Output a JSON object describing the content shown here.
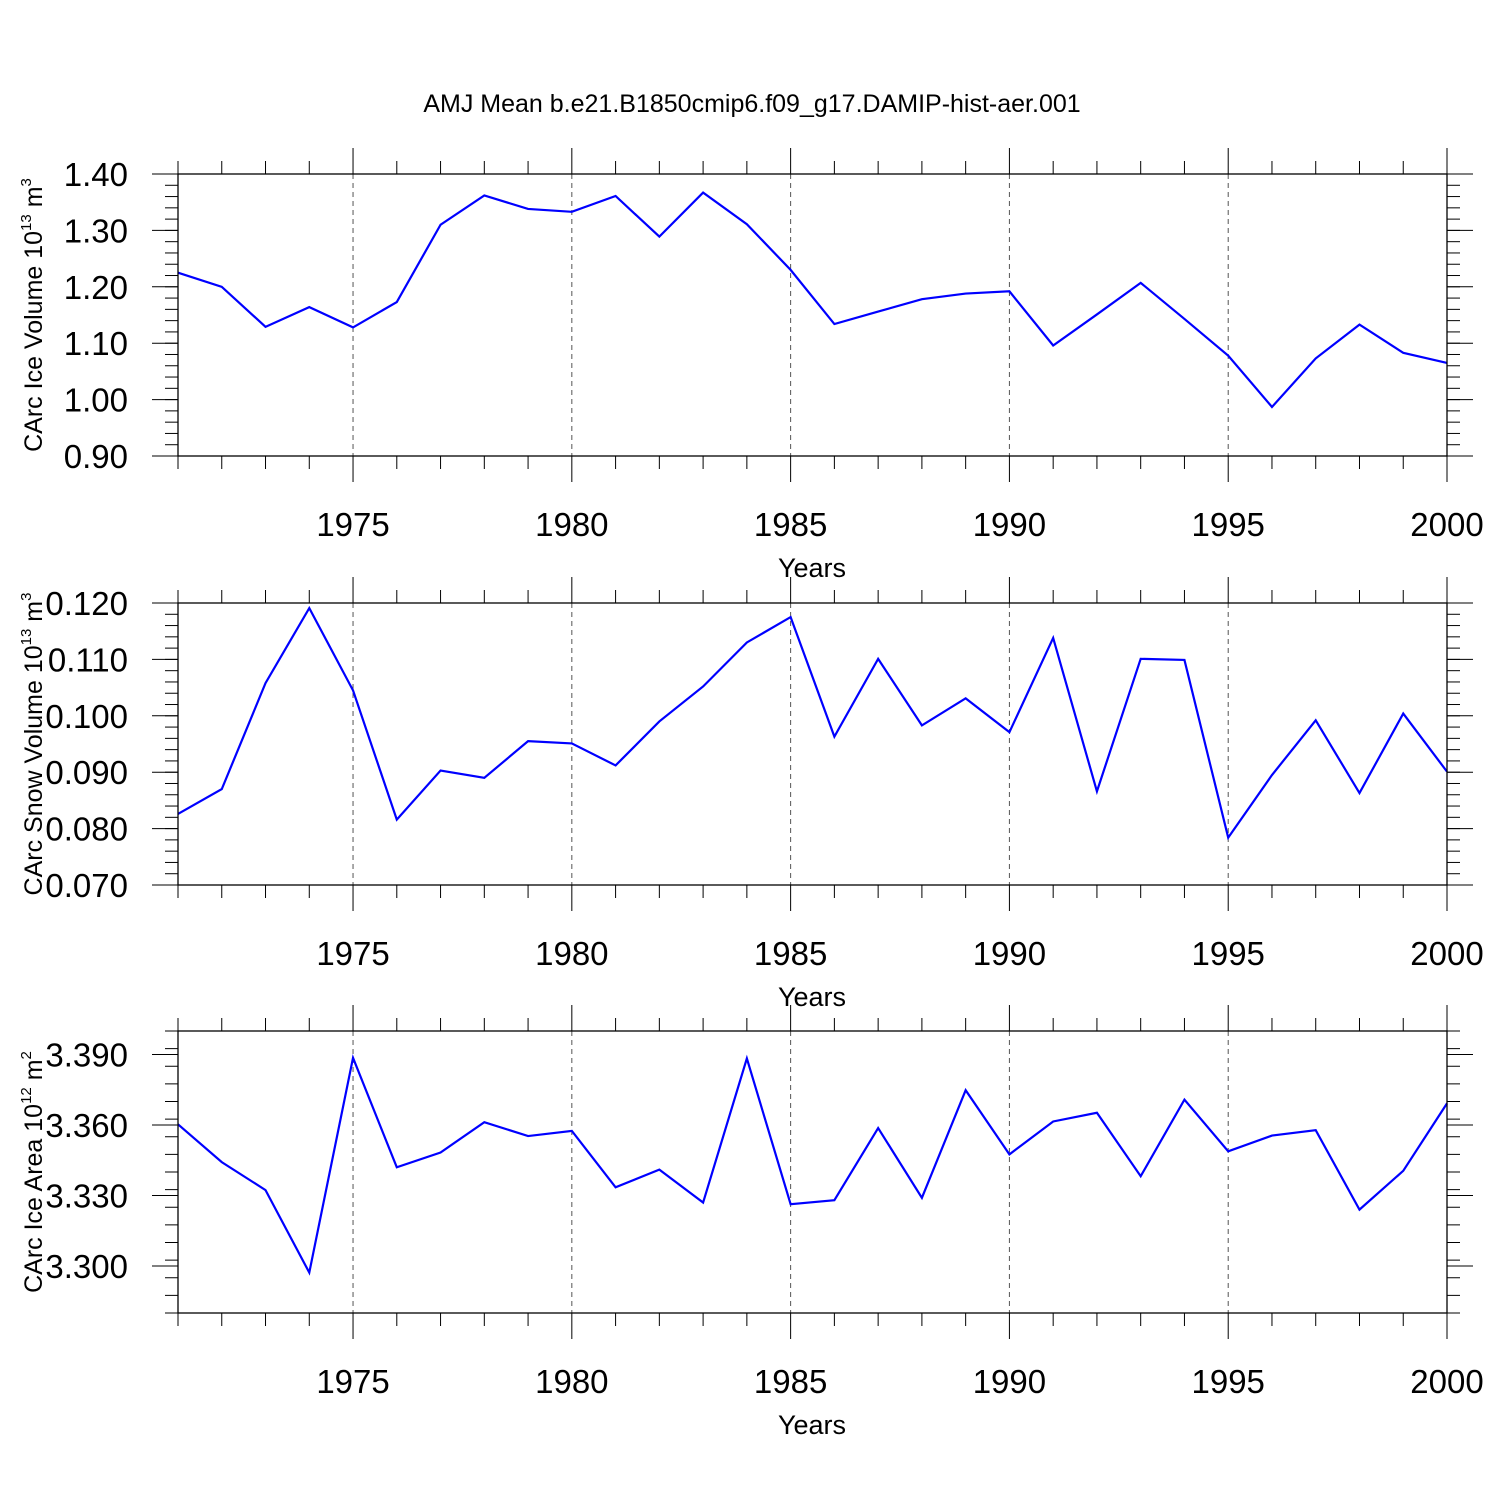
{
  "title": "AMJ Mean b.e21.B1850cmip6.f09_g17.DAMIP-hist-aer.001",
  "chart_data": [
    {
      "type": "line",
      "ylabel": "CArc Ice Volume 10",
      "ylabel_exp": "13",
      "ylabel_unit": "m",
      "ylabel_unit_exp": "3",
      "xlabel": "Years",
      "xlim": [
        1971,
        2000
      ],
      "ylim": [
        0.9,
        1.4
      ],
      "yticks": [
        0.9,
        1.0,
        1.1,
        1.2,
        1.3,
        1.4
      ],
      "ytick_labels": [
        "0.90",
        "1.00",
        "1.10",
        "1.20",
        "1.30",
        "1.40"
      ],
      "xticks": [
        1975,
        1980,
        1985,
        1990,
        1995,
        2000
      ],
      "xtick_labels": [
        "1975",
        "1980",
        "1985",
        "1990",
        "1995",
        "2000"
      ],
      "color": "#0000ff",
      "x": [
        1971,
        1972,
        1973,
        1974,
        1975,
        1976,
        1977,
        1978,
        1979,
        1980,
        1981,
        1982,
        1983,
        1984,
        1985,
        1986,
        1987,
        1988,
        1989,
        1990,
        1991,
        1992,
        1993,
        1994,
        1995,
        1996,
        1997,
        1998,
        1999,
        2000
      ],
      "values": [
        1.225,
        1.2,
        1.129,
        1.164,
        1.128,
        1.173,
        1.31,
        1.362,
        1.338,
        1.333,
        1.361,
        1.289,
        1.367,
        1.311,
        1.23,
        1.134,
        1.156,
        1.178,
        1.188,
        1.192,
        1.096,
        1.151,
        1.207,
        1.143,
        1.078,
        0.987,
        1.073,
        1.133,
        1.083,
        1.065
      ]
    },
    {
      "type": "line",
      "ylabel": "CArc Snow Volume 10",
      "ylabel_exp": "13",
      "ylabel_unit": "m",
      "ylabel_unit_exp": "3",
      "xlabel": "Years",
      "xlim": [
        1971,
        2000
      ],
      "ylim": [
        0.07,
        0.12
      ],
      "yticks": [
        0.07,
        0.08,
        0.09,
        0.1,
        0.11,
        0.12
      ],
      "ytick_labels": [
        "0.070",
        "0.080",
        "0.090",
        "0.100",
        "0.110",
        "0.120"
      ],
      "xticks": [
        1975,
        1980,
        1985,
        1990,
        1995,
        2000
      ],
      "xtick_labels": [
        "1975",
        "1980",
        "1985",
        "1990",
        "1995",
        "2000"
      ],
      "color": "#0000ff",
      "x": [
        1971,
        1972,
        1973,
        1974,
        1975,
        1976,
        1977,
        1978,
        1979,
        1980,
        1981,
        1982,
        1983,
        1984,
        1985,
        1986,
        1987,
        1988,
        1989,
        1990,
        1991,
        1992,
        1993,
        1994,
        1995,
        1996,
        1997,
        1998,
        1999,
        2000
      ],
      "values": [
        0.0826,
        0.087,
        0.1058,
        0.1191,
        0.1045,
        0.0816,
        0.0903,
        0.089,
        0.0955,
        0.0951,
        0.0912,
        0.099,
        0.1052,
        0.113,
        0.1175,
        0.0963,
        0.1101,
        0.0983,
        0.1031,
        0.0971,
        0.1138,
        0.0866,
        0.1101,
        0.1099,
        0.0784,
        0.0895,
        0.0992,
        0.0863,
        0.1004,
        0.0901
      ]
    },
    {
      "type": "line",
      "ylabel": "CArc Ice Area 10",
      "ylabel_exp": "12",
      "ylabel_unit": "m",
      "ylabel_unit_exp": "2",
      "xlabel": "Years",
      "xlim": [
        1971,
        2000
      ],
      "ylim": [
        3.28,
        3.4
      ],
      "yticks": [
        3.3,
        3.33,
        3.36,
        3.39
      ],
      "ytick_labels": [
        "3.300",
        "3.330",
        "3.360",
        "3.390"
      ],
      "minor_step": 0.0075,
      "xticks": [
        1975,
        1980,
        1985,
        1990,
        1995,
        2000
      ],
      "xtick_labels": [
        "1975",
        "1980",
        "1985",
        "1990",
        "1995",
        "2000"
      ],
      "color": "#0000ff",
      "x": [
        1971,
        1972,
        1973,
        1974,
        1975,
        1976,
        1977,
        1978,
        1979,
        1980,
        1981,
        1982,
        1983,
        1984,
        1985,
        1986,
        1987,
        1988,
        1989,
        1990,
        1991,
        1992,
        1993,
        1994,
        1995,
        1996,
        1997,
        1998,
        1999,
        2000
      ],
      "values": [
        3.3603,
        3.3442,
        3.3323,
        3.2972,
        3.3886,
        3.342,
        3.3483,
        3.3612,
        3.3553,
        3.3575,
        3.3335,
        3.341,
        3.327,
        3.3883,
        3.3263,
        3.328,
        3.3587,
        3.329,
        3.3748,
        3.3475,
        3.3615,
        3.3652,
        3.3382,
        3.3708,
        3.3488,
        3.3555,
        3.3578,
        3.324,
        3.3405,
        3.3692
      ]
    }
  ]
}
